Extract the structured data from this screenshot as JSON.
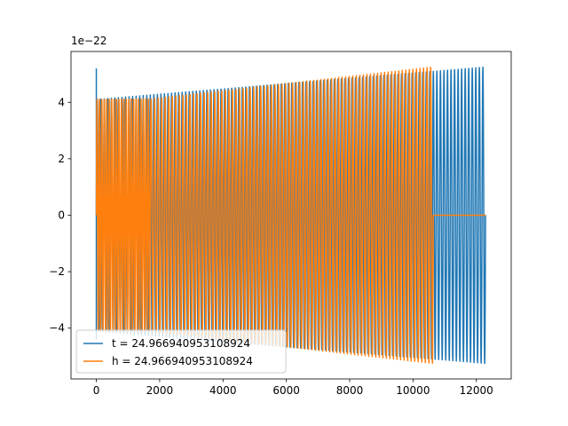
{
  "chart_data": {
    "type": "line",
    "title": "",
    "xlabel": "",
    "ylabel": "",
    "offset_label": "1e−22",
    "xlim": [
      -800,
      13100
    ],
    "ylim": [
      -5.8,
      5.8
    ],
    "x_ticks": [
      0,
      2000,
      4000,
      6000,
      8000,
      10000,
      12000
    ],
    "x_tick_labels": [
      "0",
      "2000",
      "4000",
      "6000",
      "8000",
      "10000",
      "12000"
    ],
    "y_ticks": [
      -4,
      -2,
      0,
      2,
      4
    ],
    "y_tick_labels": [
      "−4",
      "−2",
      "0",
      "2",
      "4"
    ],
    "grid": false,
    "legend_position": "lower-left",
    "series": [
      {
        "name": "t = 24.966940953108924",
        "color": "#1f77b4",
        "segments": [
          {
            "type": "oscillation",
            "x_start": 0,
            "x_end": 12290,
            "amp_start": 4.1,
            "amp_end": 5.25,
            "cycles": 110
          },
          {
            "type": "spike",
            "x": 0,
            "y_min": -4.4,
            "y_max": 5.2
          }
        ]
      },
      {
        "name": "h = 24.966940953108924",
        "color": "#ff7f0e",
        "segments": [
          {
            "type": "oscillation",
            "x_start": 0,
            "x_end": 1700,
            "amp_start": 4.1,
            "amp_end": 4.12,
            "cycles": 22
          },
          {
            "type": "flat",
            "x_start": 60,
            "x_end": 1700,
            "y": 0
          },
          {
            "type": "oscillation",
            "x_start": 1700,
            "x_end": 10640,
            "amp_start": 4.12,
            "amp_end": 5.25,
            "cycles": 80
          },
          {
            "type": "flat",
            "x_start": 10640,
            "x_end": 12290,
            "y": 0
          }
        ]
      }
    ]
  }
}
